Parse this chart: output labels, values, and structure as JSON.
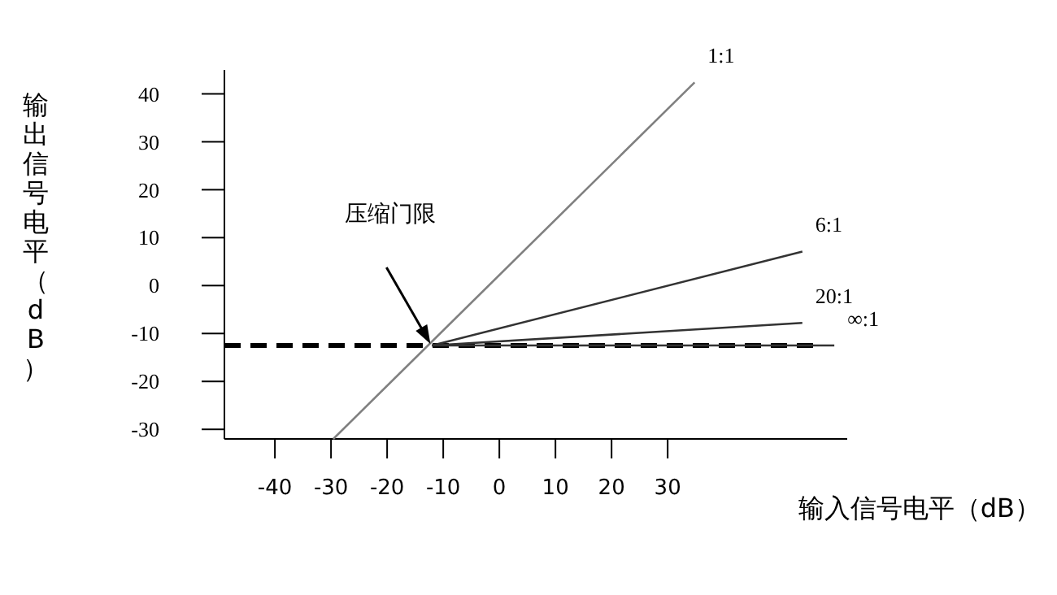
{
  "chart_data": {
    "type": "line",
    "xlabel": "输入信号电平（dB）",
    "ylabel": "输出信号电平（dB）",
    "xlim": [
      -49,
      62
    ],
    "ylim": [
      -32,
      45
    ],
    "xticks": [
      -40,
      -30,
      -20,
      -10,
      0,
      10,
      20,
      30
    ],
    "yticks": [
      -30,
      -20,
      -10,
      0,
      10,
      20,
      30,
      40
    ],
    "grid": false,
    "legend": false,
    "marker": "none",
    "series": [
      {
        "name": "1:1",
        "color": "#808080",
        "x": [
          -29.6,
          34.8
        ],
        "values": [
          -32,
          42.4
        ]
      },
      {
        "name": "6:1",
        "color": "#333333",
        "x": [
          -12,
          54
        ],
        "values": [
          -12.5,
          7.1
        ]
      },
      {
        "name": "20:1",
        "color": "#333333",
        "x": [
          -12,
          54
        ],
        "values": [
          -12.5,
          -7.8
        ]
      },
      {
        "name": "∞:1",
        "color": "#333333",
        "x": [
          -12,
          59.7
        ],
        "values": [
          -12.5,
          -12.5
        ]
      }
    ],
    "ref_lines": [
      {
        "axis": "y",
        "value": -12.5,
        "label": null,
        "color": "#000000",
        "line_style": "dashed"
      }
    ],
    "annotations": [
      "压缩门限"
    ]
  }
}
